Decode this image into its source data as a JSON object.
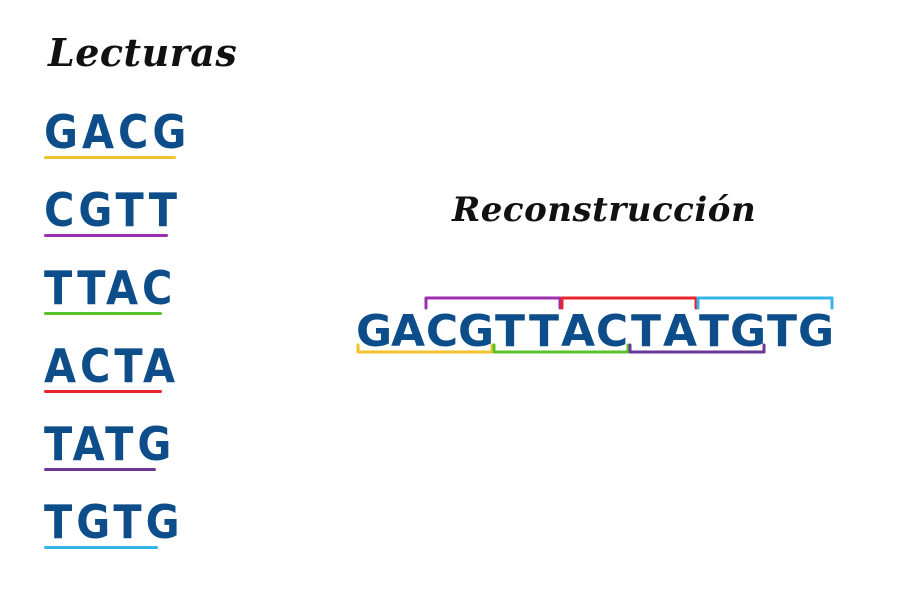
{
  "titles": {
    "reads": "Lecturas",
    "reconstruction": "Reconstrucción"
  },
  "reads": [
    {
      "text": "GACG",
      "color": "#f2c12e"
    },
    {
      "text": "CGTT",
      "color": "#9b2fae"
    },
    {
      "text": "TTAC",
      "color": "#58c22a"
    },
    {
      "text": "ACTA",
      "color": "#e8232d"
    },
    {
      "text": "TATG",
      "color": "#6a3894"
    },
    {
      "text": "TGTG",
      "color": "#33b5e8"
    }
  ],
  "reconstruction": {
    "sequence": "GACGTTACTATGTG",
    "text_color": "#0c4d8a",
    "brackets": [
      {
        "read": "GACG",
        "start": 0,
        "end": 3,
        "position": "below",
        "color": "#f2c12e"
      },
      {
        "read": "CGTT",
        "start": 2,
        "end": 5,
        "position": "above",
        "color": "#9b2fae"
      },
      {
        "read": "TTAC",
        "start": 4,
        "end": 7,
        "position": "below",
        "color": "#58c22a"
      },
      {
        "read": "ACTA",
        "start": 6,
        "end": 9,
        "position": "above",
        "color": "#e8232d"
      },
      {
        "read": "TATG",
        "start": 8,
        "end": 11,
        "position": "below",
        "color": "#6a3894"
      },
      {
        "read": "TGTG",
        "start": 10,
        "end": 13,
        "position": "above",
        "color": "#33b5e8"
      }
    ]
  }
}
